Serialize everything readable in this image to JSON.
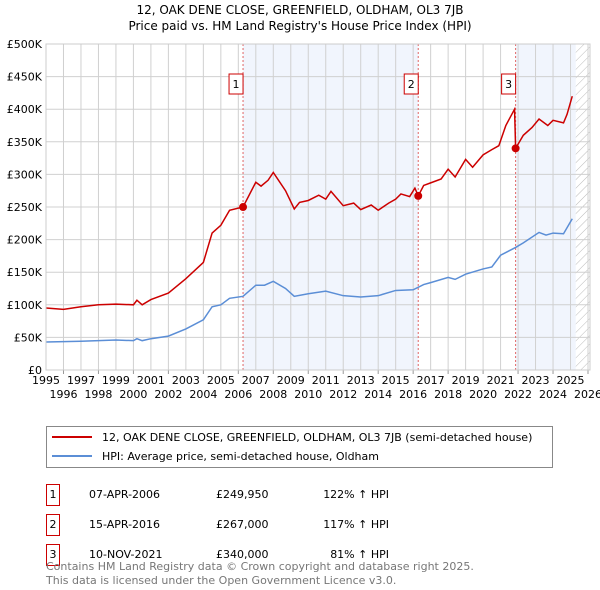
{
  "title": "12, OAK DENE CLOSE, GREENFIELD, OLDHAM, OL3 7JB",
  "subtitle": "Price paid vs. HM Land Registry's House Price Index (HPI)",
  "chart_data": {
    "type": "line",
    "title": "12, OAK DENE CLOSE, GREENFIELD, OLDHAM, OL3 7JB",
    "subtitle": "Price paid vs. HM Land Registry's House Price Index (HPI)",
    "xlim": [
      1995,
      2026
    ],
    "ylim": [
      0,
      500000
    ],
    "x_ticks": [
      "1995",
      "1996",
      "1997",
      "1998",
      "1999",
      "2000",
      "2001",
      "2002",
      "2003",
      "2004",
      "2005",
      "2006",
      "2007",
      "2008",
      "2009",
      "2010",
      "2011",
      "2012",
      "2013",
      "2014",
      "2015",
      "2016",
      "2017",
      "2018",
      "2019",
      "2020",
      "2021",
      "2022",
      "2023",
      "2024",
      "2025",
      "2026"
    ],
    "y_ticks": [
      {
        "v": 0,
        "label": "£0"
      },
      {
        "v": 50000,
        "label": "£50K"
      },
      {
        "v": 100000,
        "label": "£100K"
      },
      {
        "v": 150000,
        "label": "£150K"
      },
      {
        "v": 200000,
        "label": "£200K"
      },
      {
        "v": 250000,
        "label": "£250K"
      },
      {
        "v": 300000,
        "label": "£300K"
      },
      {
        "v": 350000,
        "label": "£350K"
      },
      {
        "v": 400000,
        "label": "£400K"
      },
      {
        "v": 450000,
        "label": "£450K"
      },
      {
        "v": 500000,
        "label": "£500K"
      }
    ],
    "grid": true,
    "shaded_ranges": [
      [
        2006.27,
        2016.29
      ],
      [
        2021.86,
        2025.3
      ]
    ],
    "forecast_from": 2025.3,
    "series": [
      {
        "name": "12, OAK DENE CLOSE, GREENFIELD, OLDHAM, OL3 7JB (semi-detached house)",
        "color": "#cc0000",
        "points": [
          [
            1995,
            95000
          ],
          [
            1996,
            93000
          ],
          [
            1997,
            97000
          ],
          [
            1998,
            100000
          ],
          [
            1999,
            101000
          ],
          [
            2000,
            100000
          ],
          [
            2000.2,
            107000
          ],
          [
            2000.5,
            100000
          ],
          [
            2001,
            108000
          ],
          [
            2002,
            118000
          ],
          [
            2003,
            140000
          ],
          [
            2004,
            165000
          ],
          [
            2004.5,
            210000
          ],
          [
            2005,
            222000
          ],
          [
            2005.5,
            245000
          ],
          [
            2006.27,
            250000
          ],
          [
            2007,
            288000
          ],
          [
            2007.3,
            282000
          ],
          [
            2007.7,
            291000
          ],
          [
            2008,
            303000
          ],
          [
            2008.7,
            275000
          ],
          [
            2009.2,
            247000
          ],
          [
            2009.5,
            257000
          ],
          [
            2010,
            260000
          ],
          [
            2010.6,
            268000
          ],
          [
            2011,
            262000
          ],
          [
            2011.3,
            274000
          ],
          [
            2012,
            252000
          ],
          [
            2012.6,
            256000
          ],
          [
            2013,
            246000
          ],
          [
            2013.6,
            253000
          ],
          [
            2014,
            245000
          ],
          [
            2014.6,
            256000
          ],
          [
            2015,
            262000
          ],
          [
            2015.3,
            270000
          ],
          [
            2015.8,
            266000
          ],
          [
            2016.1,
            279000
          ],
          [
            2016.29,
            267000
          ],
          [
            2016.6,
            283000
          ],
          [
            2017,
            287000
          ],
          [
            2017.6,
            293000
          ],
          [
            2018,
            308000
          ],
          [
            2018.4,
            296000
          ],
          [
            2019,
            323000
          ],
          [
            2019.4,
            311000
          ],
          [
            2020,
            330000
          ],
          [
            2020.5,
            338000
          ],
          [
            2020.9,
            344000
          ],
          [
            2021.3,
            375000
          ],
          [
            2021.8,
            400000
          ],
          [
            2021.86,
            340000
          ],
          [
            2022.3,
            360000
          ],
          [
            2022.8,
            372000
          ],
          [
            2023.2,
            385000
          ],
          [
            2023.7,
            375000
          ],
          [
            2024,
            383000
          ],
          [
            2024.6,
            379000
          ],
          [
            2024.8,
            392000
          ],
          [
            2025.1,
            420000
          ]
        ]
      },
      {
        "name": "HPI: Average price, semi-detached house, Oldham",
        "color": "#5b8ed6",
        "points": [
          [
            1995,
            43000
          ],
          [
            1997,
            44000
          ],
          [
            1999,
            46000
          ],
          [
            2000,
            45000
          ],
          [
            2000.2,
            48000
          ],
          [
            2000.5,
            45000
          ],
          [
            2001,
            48000
          ],
          [
            2002,
            52000
          ],
          [
            2003,
            63000
          ],
          [
            2004,
            77000
          ],
          [
            2004.5,
            97000
          ],
          [
            2005,
            100000
          ],
          [
            2005.5,
            110000
          ],
          [
            2006.27,
            113000
          ],
          [
            2007,
            130000
          ],
          [
            2007.5,
            130000
          ],
          [
            2008,
            136000
          ],
          [
            2008.7,
            125000
          ],
          [
            2009.2,
            113000
          ],
          [
            2010,
            117000
          ],
          [
            2011,
            121000
          ],
          [
            2012,
            114000
          ],
          [
            2013,
            112000
          ],
          [
            2014,
            114000
          ],
          [
            2015,
            122000
          ],
          [
            2016,
            123000
          ],
          [
            2016.6,
            131000
          ],
          [
            2017,
            134000
          ],
          [
            2018,
            142000
          ],
          [
            2018.4,
            139000
          ],
          [
            2019,
            147000
          ],
          [
            2020,
            155000
          ],
          [
            2020.5,
            158000
          ],
          [
            2021,
            176000
          ],
          [
            2021.86,
            188000
          ],
          [
            2022.3,
            195000
          ],
          [
            2023.2,
            211000
          ],
          [
            2023.6,
            207000
          ],
          [
            2024,
            210000
          ],
          [
            2024.6,
            209000
          ],
          [
            2025.1,
            232000
          ]
        ]
      }
    ],
    "sales": [
      {
        "n": "1",
        "x": 2006.27,
        "y": 249950
      },
      {
        "n": "2",
        "x": 2016.29,
        "y": 267000
      },
      {
        "n": "3",
        "x": 2021.86,
        "y": 340000
      }
    ]
  },
  "legend": {
    "property": "12, OAK DENE CLOSE, GREENFIELD, OLDHAM, OL3 7JB (semi-detached house)",
    "hpi": "HPI: Average price, semi-detached house, Oldham"
  },
  "transactions": [
    {
      "n": "1",
      "date": "07-APR-2006",
      "price": "£249,950",
      "hpi": "122% ↑ HPI"
    },
    {
      "n": "2",
      "date": "15-APR-2016",
      "price": "£267,000",
      "hpi": "117% ↑ HPI"
    },
    {
      "n": "3",
      "date": "10-NOV-2021",
      "price": "£340,000",
      "hpi": "81% ↑ HPI"
    }
  ],
  "footer": {
    "line1": "Contains HM Land Registry data © Crown copyright and database right 2025.",
    "line2": "This data is licensed under the Open Government Licence v3.0."
  }
}
